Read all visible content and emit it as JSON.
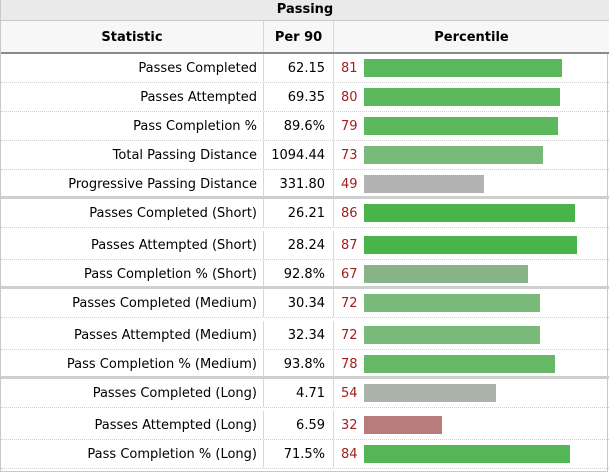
{
  "table": {
    "title": "Passing",
    "headers": {
      "statistic": "Statistic",
      "per90": "Per 90",
      "percentile": "Percentile"
    },
    "rows": [
      {
        "stat": "Passes Completed",
        "per90": "62.15",
        "pct": "81",
        "color": "#5cb85c"
      },
      {
        "stat": "Passes Attempted",
        "per90": "69.35",
        "pct": "80",
        "color": "#5cb85c"
      },
      {
        "stat": "Pass Completion %",
        "per90": "89.6%",
        "pct": "79",
        "color": "#5cb85c"
      },
      {
        "stat": "Total Passing Distance",
        "per90": "1094.44",
        "pct": "73",
        "color": "#79b97a"
      },
      {
        "stat": "Progressive Passing Distance",
        "per90": "331.80",
        "pct": "49",
        "color": "#b3b3b3"
      },
      {
        "stat": "Passes Completed (Short)",
        "per90": "26.21",
        "pct": "86",
        "color": "#49b449"
      },
      {
        "stat": "Passes Attempted (Short)",
        "per90": "28.24",
        "pct": "87",
        "color": "#49b449"
      },
      {
        "stat": "Pass Completion % (Short)",
        "per90": "92.8%",
        "pct": "67",
        "color": "#87b387"
      },
      {
        "stat": "Passes Completed (Medium)",
        "per90": "30.34",
        "pct": "72",
        "color": "#79b97a"
      },
      {
        "stat": "Passes Attempted (Medium)",
        "per90": "32.34",
        "pct": "72",
        "color": "#79b97a"
      },
      {
        "stat": "Pass Completion % (Medium)",
        "per90": "93.8%",
        "pct": "78",
        "color": "#66b866"
      },
      {
        "stat": "Passes Completed (Long)",
        "per90": "4.71",
        "pct": "54",
        "color": "#a9b3a9"
      },
      {
        "stat": "Passes Attempted (Long)",
        "per90": "6.59",
        "pct": "32",
        "color": "#b97c7c"
      },
      {
        "stat": "Pass Completion % (Long)",
        "per90": "71.5%",
        "pct": "84",
        "color": "#55b655"
      }
    ]
  }
}
